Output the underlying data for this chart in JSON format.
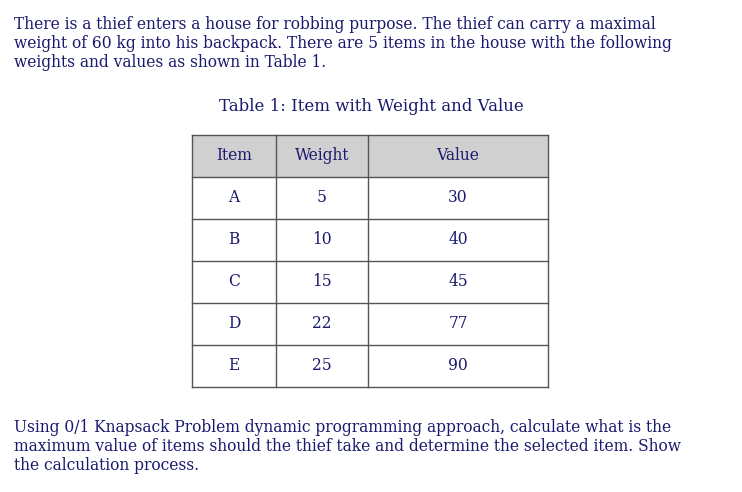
{
  "intro_text_line1": "There is a thief enters a house for robbing purpose. The thief can carry a maximal",
  "intro_text_line2": "weight of 60 kg into his backpack. There are 5 items in the house with the following",
  "intro_text_line3": "weights and values as shown in Table 1.",
  "table_title": "Table 1: Item with Weight and Value",
  "table_headers": [
    "Item",
    "Weight",
    "Value"
  ],
  "table_rows": [
    [
      "A",
      "5",
      "30"
    ],
    [
      "B",
      "10",
      "40"
    ],
    [
      "C",
      "15",
      "45"
    ],
    [
      "D",
      "22",
      "77"
    ],
    [
      "E",
      "25",
      "90"
    ]
  ],
  "footer_text_line1": "Using 0/1 Knapsack Problem dynamic programming approach, calculate what is the",
  "footer_text_line2": "maximum value of items should the thief take and determine the selected item. Show",
  "footer_text_line3": "the calculation process.",
  "bg_color": "#ffffff",
  "text_color": "#1a1a6e",
  "header_bg": "#d0d0d0",
  "table_line_color": "#555555",
  "font_size_body": 11.2,
  "font_size_table": 11.2,
  "font_size_table_title": 12.0
}
